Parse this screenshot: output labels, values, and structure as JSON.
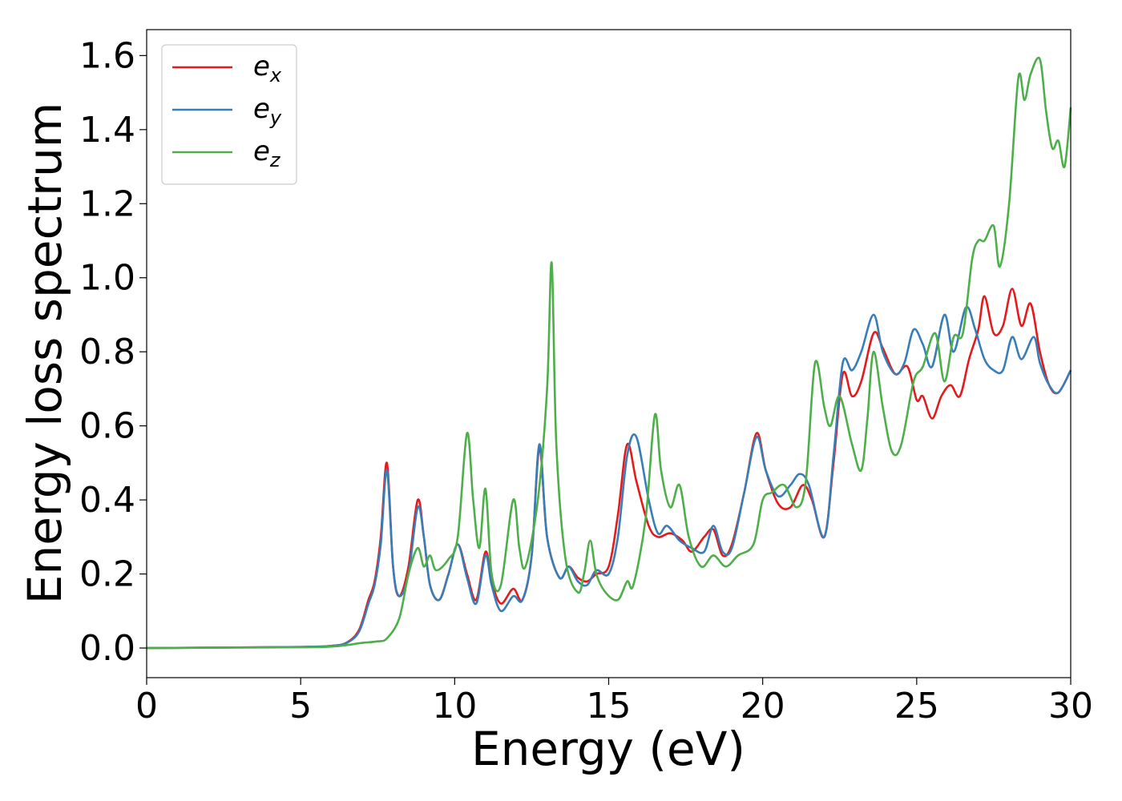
{
  "chart_data": {
    "type": "line",
    "title": "",
    "xlabel": "Energy (eV)",
    "ylabel": "Energy loss spectrum",
    "xlim": [
      0,
      30
    ],
    "ylim": [
      -0.08,
      1.67
    ],
    "xticks": [
      0,
      5,
      10,
      15,
      20,
      25,
      30
    ],
    "xtick_labels": [
      "0",
      "5",
      "10",
      "15",
      "20",
      "25",
      "30"
    ],
    "yticks": [
      0.0,
      0.2,
      0.4,
      0.6,
      0.8,
      1.0,
      1.2,
      1.4,
      1.6
    ],
    "ytick_labels": [
      "0.0",
      "0.2",
      "0.4",
      "0.6",
      "0.8",
      "1.0",
      "1.2",
      "1.4",
      "1.6"
    ],
    "grid": false,
    "legend_position": "top-left",
    "series": [
      {
        "name": "e",
        "subscript": "x",
        "color": "#e41a1c",
        "points": [
          [
            0,
            0
          ],
          [
            5,
            0.003
          ],
          [
            6,
            0.006
          ],
          [
            6.5,
            0.015
          ],
          [
            6.9,
            0.05
          ],
          [
            7.2,
            0.13
          ],
          [
            7.4,
            0.18
          ],
          [
            7.6,
            0.3
          ],
          [
            7.8,
            0.5
          ],
          [
            8.0,
            0.22
          ],
          [
            8.2,
            0.14
          ],
          [
            8.5,
            0.22
          ],
          [
            8.8,
            0.4
          ],
          [
            9.0,
            0.3
          ],
          [
            9.2,
            0.17
          ],
          [
            9.5,
            0.13
          ],
          [
            9.8,
            0.2
          ],
          [
            10.1,
            0.28
          ],
          [
            10.4,
            0.2
          ],
          [
            10.7,
            0.13
          ],
          [
            11.0,
            0.26
          ],
          [
            11.2,
            0.18
          ],
          [
            11.5,
            0.12
          ],
          [
            11.9,
            0.16
          ],
          [
            12.2,
            0.13
          ],
          [
            12.5,
            0.25
          ],
          [
            12.75,
            0.54
          ],
          [
            13.0,
            0.3
          ],
          [
            13.4,
            0.19
          ],
          [
            13.7,
            0.22
          ],
          [
            14.0,
            0.19
          ],
          [
            14.3,
            0.18
          ],
          [
            14.6,
            0.2
          ],
          [
            15.0,
            0.22
          ],
          [
            15.3,
            0.36
          ],
          [
            15.6,
            0.55
          ],
          [
            15.9,
            0.45
          ],
          [
            16.3,
            0.33
          ],
          [
            16.6,
            0.3
          ],
          [
            17.0,
            0.31
          ],
          [
            17.4,
            0.29
          ],
          [
            17.7,
            0.26
          ],
          [
            18.1,
            0.3
          ],
          [
            18.4,
            0.32
          ],
          [
            18.7,
            0.25
          ],
          [
            19.0,
            0.28
          ],
          [
            19.4,
            0.42
          ],
          [
            19.8,
            0.58
          ],
          [
            20.1,
            0.48
          ],
          [
            20.5,
            0.39
          ],
          [
            20.9,
            0.38
          ],
          [
            21.3,
            0.44
          ],
          [
            21.6,
            0.4
          ],
          [
            22.0,
            0.3
          ],
          [
            22.3,
            0.5
          ],
          [
            22.6,
            0.74
          ],
          [
            22.9,
            0.68
          ],
          [
            23.2,
            0.72
          ],
          [
            23.6,
            0.85
          ],
          [
            23.9,
            0.81
          ],
          [
            24.3,
            0.74
          ],
          [
            24.7,
            0.76
          ],
          [
            25.0,
            0.67
          ],
          [
            25.2,
            0.68
          ],
          [
            25.5,
            0.62
          ],
          [
            25.8,
            0.68
          ],
          [
            26.1,
            0.71
          ],
          [
            26.4,
            0.68
          ],
          [
            26.7,
            0.78
          ],
          [
            27.0,
            0.86
          ],
          [
            27.2,
            0.95
          ],
          [
            27.5,
            0.85
          ],
          [
            27.8,
            0.87
          ],
          [
            28.1,
            0.97
          ],
          [
            28.4,
            0.87
          ],
          [
            28.7,
            0.93
          ],
          [
            29.0,
            0.8
          ],
          [
            29.3,
            0.71
          ],
          [
            29.6,
            0.69
          ],
          [
            30.0,
            0.75
          ]
        ]
      },
      {
        "name": "e",
        "subscript": "y",
        "color": "#377eb8",
        "points": [
          [
            0,
            0
          ],
          [
            5,
            0.003
          ],
          [
            6,
            0.006
          ],
          [
            6.5,
            0.014
          ],
          [
            6.9,
            0.045
          ],
          [
            7.2,
            0.12
          ],
          [
            7.4,
            0.17
          ],
          [
            7.6,
            0.28
          ],
          [
            7.8,
            0.48
          ],
          [
            8.0,
            0.22
          ],
          [
            8.2,
            0.14
          ],
          [
            8.5,
            0.2
          ],
          [
            8.8,
            0.38
          ],
          [
            9.0,
            0.3
          ],
          [
            9.2,
            0.17
          ],
          [
            9.5,
            0.13
          ],
          [
            9.8,
            0.2
          ],
          [
            10.1,
            0.28
          ],
          [
            10.4,
            0.19
          ],
          [
            10.7,
            0.12
          ],
          [
            11.0,
            0.25
          ],
          [
            11.2,
            0.17
          ],
          [
            11.5,
            0.1
          ],
          [
            11.9,
            0.14
          ],
          [
            12.2,
            0.13
          ],
          [
            12.5,
            0.25
          ],
          [
            12.75,
            0.55
          ],
          [
            13.0,
            0.3
          ],
          [
            13.4,
            0.19
          ],
          [
            13.7,
            0.22
          ],
          [
            14.0,
            0.18
          ],
          [
            14.3,
            0.17
          ],
          [
            14.6,
            0.21
          ],
          [
            15.0,
            0.2
          ],
          [
            15.3,
            0.3
          ],
          [
            15.6,
            0.52
          ],
          [
            15.9,
            0.57
          ],
          [
            16.3,
            0.4
          ],
          [
            16.6,
            0.31
          ],
          [
            16.9,
            0.33
          ],
          [
            17.3,
            0.29
          ],
          [
            17.7,
            0.27
          ],
          [
            18.1,
            0.26
          ],
          [
            18.4,
            0.33
          ],
          [
            18.7,
            0.26
          ],
          [
            19.0,
            0.27
          ],
          [
            19.4,
            0.42
          ],
          [
            19.8,
            0.57
          ],
          [
            20.1,
            0.48
          ],
          [
            20.5,
            0.41
          ],
          [
            20.9,
            0.44
          ],
          [
            21.2,
            0.47
          ],
          [
            21.5,
            0.44
          ],
          [
            22.0,
            0.3
          ],
          [
            22.3,
            0.52
          ],
          [
            22.6,
            0.77
          ],
          [
            22.9,
            0.75
          ],
          [
            23.2,
            0.8
          ],
          [
            23.6,
            0.9
          ],
          [
            23.9,
            0.8
          ],
          [
            24.3,
            0.74
          ],
          [
            24.6,
            0.77
          ],
          [
            24.9,
            0.86
          ],
          [
            25.2,
            0.82
          ],
          [
            25.5,
            0.76
          ],
          [
            25.9,
            0.9
          ],
          [
            26.2,
            0.8
          ],
          [
            26.6,
            0.92
          ],
          [
            26.9,
            0.86
          ],
          [
            27.2,
            0.78
          ],
          [
            27.5,
            0.75
          ],
          [
            27.8,
            0.75
          ],
          [
            28.1,
            0.84
          ],
          [
            28.4,
            0.78
          ],
          [
            28.8,
            0.84
          ],
          [
            29.0,
            0.77
          ],
          [
            29.3,
            0.71
          ],
          [
            29.6,
            0.69
          ],
          [
            30.0,
            0.75
          ]
        ]
      },
      {
        "name": "e",
        "subscript": "z",
        "color": "#4daf4a",
        "points": [
          [
            0,
            0
          ],
          [
            5,
            0.002
          ],
          [
            6,
            0.004
          ],
          [
            6.5,
            0.008
          ],
          [
            7.0,
            0.014
          ],
          [
            7.5,
            0.018
          ],
          [
            7.8,
            0.026
          ],
          [
            8.2,
            0.08
          ],
          [
            8.5,
            0.2
          ],
          [
            8.8,
            0.27
          ],
          [
            9.0,
            0.22
          ],
          [
            9.2,
            0.25
          ],
          [
            9.4,
            0.21
          ],
          [
            9.8,
            0.24
          ],
          [
            10.1,
            0.3
          ],
          [
            10.4,
            0.58
          ],
          [
            10.6,
            0.4
          ],
          [
            10.8,
            0.27
          ],
          [
            11.0,
            0.43
          ],
          [
            11.2,
            0.2
          ],
          [
            11.5,
            0.17
          ],
          [
            11.9,
            0.4
          ],
          [
            12.1,
            0.27
          ],
          [
            12.3,
            0.22
          ],
          [
            12.7,
            0.4
          ],
          [
            13.0,
            0.7
          ],
          [
            13.15,
            1.04
          ],
          [
            13.3,
            0.55
          ],
          [
            13.6,
            0.24
          ],
          [
            14.0,
            0.15
          ],
          [
            14.2,
            0.2
          ],
          [
            14.4,
            0.29
          ],
          [
            14.6,
            0.2
          ],
          [
            14.9,
            0.15
          ],
          [
            15.3,
            0.13
          ],
          [
            15.6,
            0.18
          ],
          [
            15.8,
            0.17
          ],
          [
            16.2,
            0.35
          ],
          [
            16.5,
            0.63
          ],
          [
            16.7,
            0.48
          ],
          [
            17.0,
            0.38
          ],
          [
            17.3,
            0.44
          ],
          [
            17.6,
            0.3
          ],
          [
            18.0,
            0.22
          ],
          [
            18.4,
            0.25
          ],
          [
            18.8,
            0.22
          ],
          [
            19.2,
            0.25
          ],
          [
            19.7,
            0.28
          ],
          [
            20.0,
            0.4
          ],
          [
            20.3,
            0.42
          ],
          [
            20.7,
            0.44
          ],
          [
            21.1,
            0.38
          ],
          [
            21.4,
            0.45
          ],
          [
            21.7,
            0.77
          ],
          [
            22.0,
            0.65
          ],
          [
            22.2,
            0.6
          ],
          [
            22.5,
            0.68
          ],
          [
            22.9,
            0.55
          ],
          [
            23.2,
            0.48
          ],
          [
            23.4,
            0.62
          ],
          [
            23.6,
            0.8
          ],
          [
            23.9,
            0.65
          ],
          [
            24.2,
            0.53
          ],
          [
            24.5,
            0.55
          ],
          [
            24.9,
            0.72
          ],
          [
            25.2,
            0.76
          ],
          [
            25.6,
            0.85
          ],
          [
            25.9,
            0.72
          ],
          [
            26.2,
            0.84
          ],
          [
            26.5,
            0.85
          ],
          [
            26.8,
            1.05
          ],
          [
            27.0,
            1.1
          ],
          [
            27.2,
            1.1
          ],
          [
            27.5,
            1.14
          ],
          [
            27.7,
            1.03
          ],
          [
            28.0,
            1.2
          ],
          [
            28.3,
            1.54
          ],
          [
            28.5,
            1.48
          ],
          [
            28.7,
            1.55
          ],
          [
            29.0,
            1.59
          ],
          [
            29.2,
            1.45
          ],
          [
            29.4,
            1.35
          ],
          [
            29.6,
            1.37
          ],
          [
            29.8,
            1.3
          ],
          [
            30.0,
            1.46
          ]
        ]
      }
    ]
  }
}
